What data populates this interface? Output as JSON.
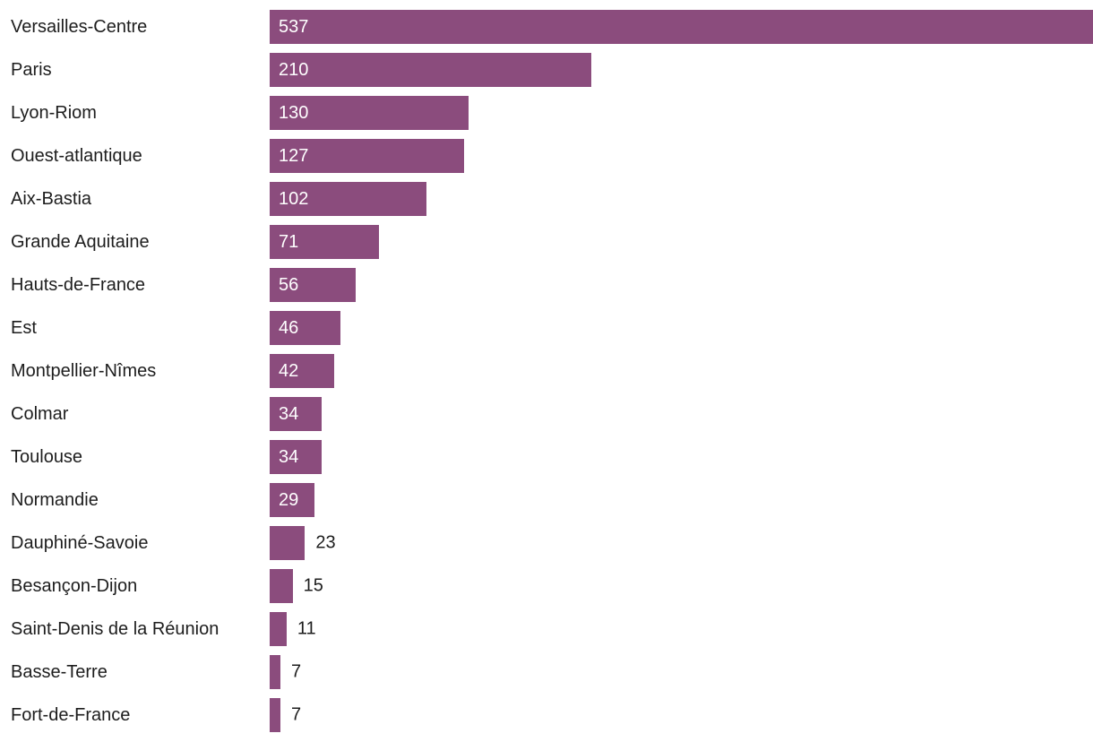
{
  "chart_data": {
    "type": "bar",
    "orientation": "horizontal",
    "title": "",
    "xlabel": "",
    "ylabel": "",
    "categories": [
      "Versailles-Centre",
      "Paris",
      "Lyon-Riom",
      "Ouest-atlantique",
      "Aix-Bastia",
      "Grande Aquitaine",
      "Hauts-de-France",
      "Est",
      "Montpellier-Nîmes",
      "Colmar",
      "Toulouse",
      "Normandie",
      "Dauphiné-Savoie",
      "Besançon-Dijon",
      "Saint-Denis de la Réunion",
      "Basse-Terre",
      "Fort-de-France"
    ],
    "values": [
      537,
      210,
      130,
      127,
      102,
      71,
      56,
      46,
      42,
      34,
      34,
      29,
      23,
      15,
      11,
      7,
      7
    ],
    "xlim": [
      0,
      537
    ],
    "grid": false,
    "legend": false,
    "value_labels": "inside bar when bar is wide enough, otherwise to the right of bar",
    "colors": {
      "bar": "#8b4c7d",
      "value_label_inside": "#ffffff",
      "value_label_outside": "#1d1d1d",
      "category_label": "#1d1d1d",
      "background": "#ffffff"
    }
  }
}
